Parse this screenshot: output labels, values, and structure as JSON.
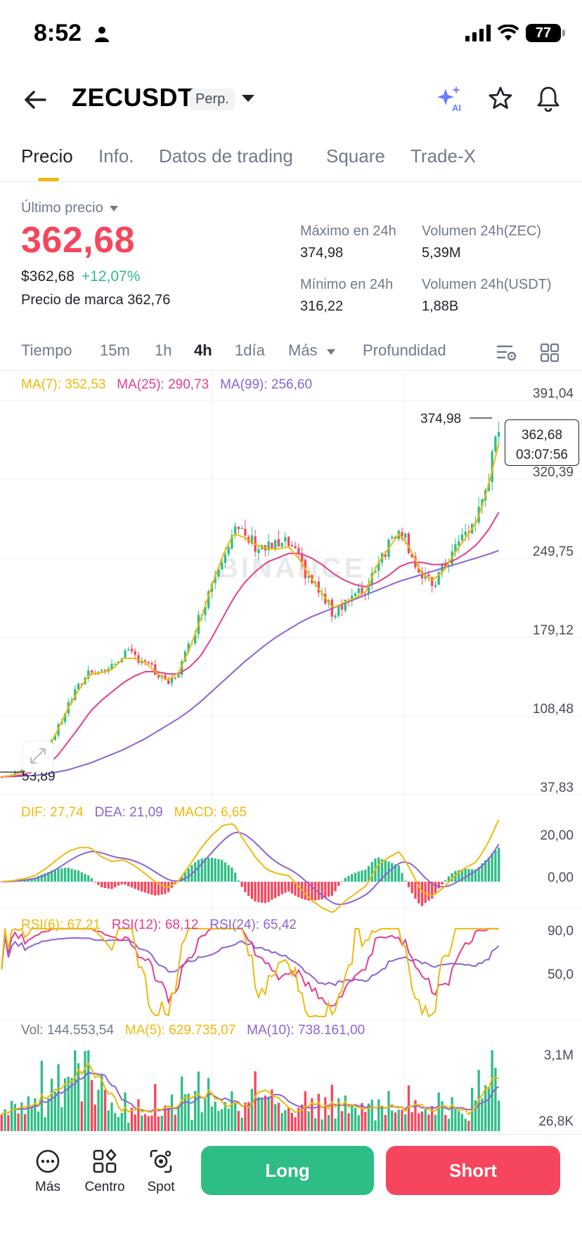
{
  "status_bar": {
    "time": "8:52",
    "battery": "77"
  },
  "header": {
    "symbol": "ZECUSDT",
    "badge": "Perp."
  },
  "tabs": [
    {
      "label": "Precio",
      "active": true
    },
    {
      "label": "Info."
    },
    {
      "label": "Datos de trading"
    },
    {
      "label": "Square"
    },
    {
      "label": "Trade-X"
    }
  ],
  "price": {
    "last_price_label": "Último precio",
    "last_price": "362,68",
    "usd_price": "$362,68",
    "change_pct": "+12,07%",
    "mark_label": "Precio de marca",
    "mark_price": "362,76"
  },
  "stats": {
    "high_label": "Máximo en 24h",
    "high": "374,98",
    "low_label": "Mínimo en 24h",
    "low": "316,22",
    "vol_zec_label": "Volumen 24h(ZEC)",
    "vol_zec": "5,39M",
    "vol_usdt_label": "Volumen 24h(USDT)",
    "vol_usdt": "1,88B"
  },
  "intervals": {
    "time": "Tiempo",
    "m15": "15m",
    "h1": "1h",
    "h4": "4h",
    "d1": "1día",
    "more": "Más",
    "depth": "Profundidad",
    "selected": "4h"
  },
  "indicators": {
    "ma7": "MA(7): 352,53",
    "ma25": "MA(25): 290,73",
    "ma99": "MA(99): 256,60",
    "dif": "DIF: 27,74",
    "dea": "DEA: 21,09",
    "macd": "MACD: 6,65",
    "rsi6": "RSI(6): 67,21",
    "rsi12": "RSI(12): 68,12",
    "rsi24": "RSI(24): 65,42",
    "vol": "Vol: 144.553,54",
    "vol_ma5": "MA(5): 629.735,07",
    "vol_ma10": "MA(10): 738.161,00"
  },
  "axes": {
    "price_ticks": [
      "391,04",
      "320,39",
      "249,75",
      "179,12",
      "108,48",
      "37,83"
    ],
    "macd_ticks": [
      "20,00",
      "0,00"
    ],
    "rsi_ticks": [
      "90,0",
      "50,0"
    ],
    "vol_ticks": [
      "3,1M",
      "26,8K"
    ]
  },
  "annotations": {
    "high_marker": "374,98",
    "low_marker": "53,89",
    "current_price": "362,68",
    "countdown": "03:07:56",
    "watermark": "BINANCE"
  },
  "colors": {
    "up": "#2ebd85",
    "down": "#f6465d",
    "ma7": "#f0b90b",
    "ma25": "#e53d8f",
    "ma99": "#8b63d6",
    "accent": "#f0b90b"
  },
  "bottom_bar": {
    "more": "Más",
    "center": "Centro",
    "spot": "Spot",
    "long": "Long",
    "short": "Short"
  },
  "chart_data": {
    "type": "candlestick",
    "title": "",
    "timeframe": "4h",
    "ylim": [
      37.83,
      391.04
    ],
    "close_path": [
      53.89,
      56,
      60,
      66,
      78,
      95,
      118,
      135,
      150,
      148,
      152,
      165,
      162,
      158,
      145,
      136,
      148,
      172,
      200,
      228,
      255,
      275,
      268,
      262,
      258,
      260,
      262,
      245,
      230,
      215,
      200,
      212,
      215,
      222,
      248,
      262,
      280,
      258,
      230,
      226,
      240,
      258,
      272,
      285,
      320,
      362.68
    ],
    "ma7_path": [
      53.89,
      55,
      59,
      65,
      77,
      94,
      115,
      132,
      146,
      147,
      150,
      160,
      160,
      156,
      147,
      140,
      147,
      168,
      195,
      224,
      252,
      272,
      268,
      262,
      258,
      258,
      260,
      248,
      232,
      218,
      205,
      210,
      214,
      220,
      244,
      258,
      272,
      258,
      236,
      230,
      238,
      254,
      268,
      282,
      312,
      352.53
    ],
    "ma25_path": [
      53.89,
      54,
      56,
      59,
      64,
      72,
      85,
      98,
      112,
      122,
      130,
      138,
      144,
      148,
      148,
      146,
      146,
      152,
      162,
      178,
      196,
      214,
      228,
      238,
      246,
      250,
      254,
      254,
      250,
      244,
      236,
      230,
      226,
      224,
      228,
      234,
      242,
      246,
      246,
      244,
      244,
      248,
      254,
      262,
      274,
      290.73
    ],
    "ma99_path": [
      53.89,
      54,
      54.5,
      55,
      56,
      58,
      60,
      63,
      66,
      70,
      74,
      78,
      83,
      88,
      94,
      100,
      106,
      113,
      121,
      130,
      139,
      148,
      157,
      165,
      173,
      180,
      186,
      192,
      197,
      201,
      205,
      209,
      213,
      217,
      221,
      225,
      229,
      232,
      235,
      238,
      241,
      244,
      247,
      250,
      253,
      256.6
    ],
    "high": 374.98,
    "low": 53.89
  }
}
